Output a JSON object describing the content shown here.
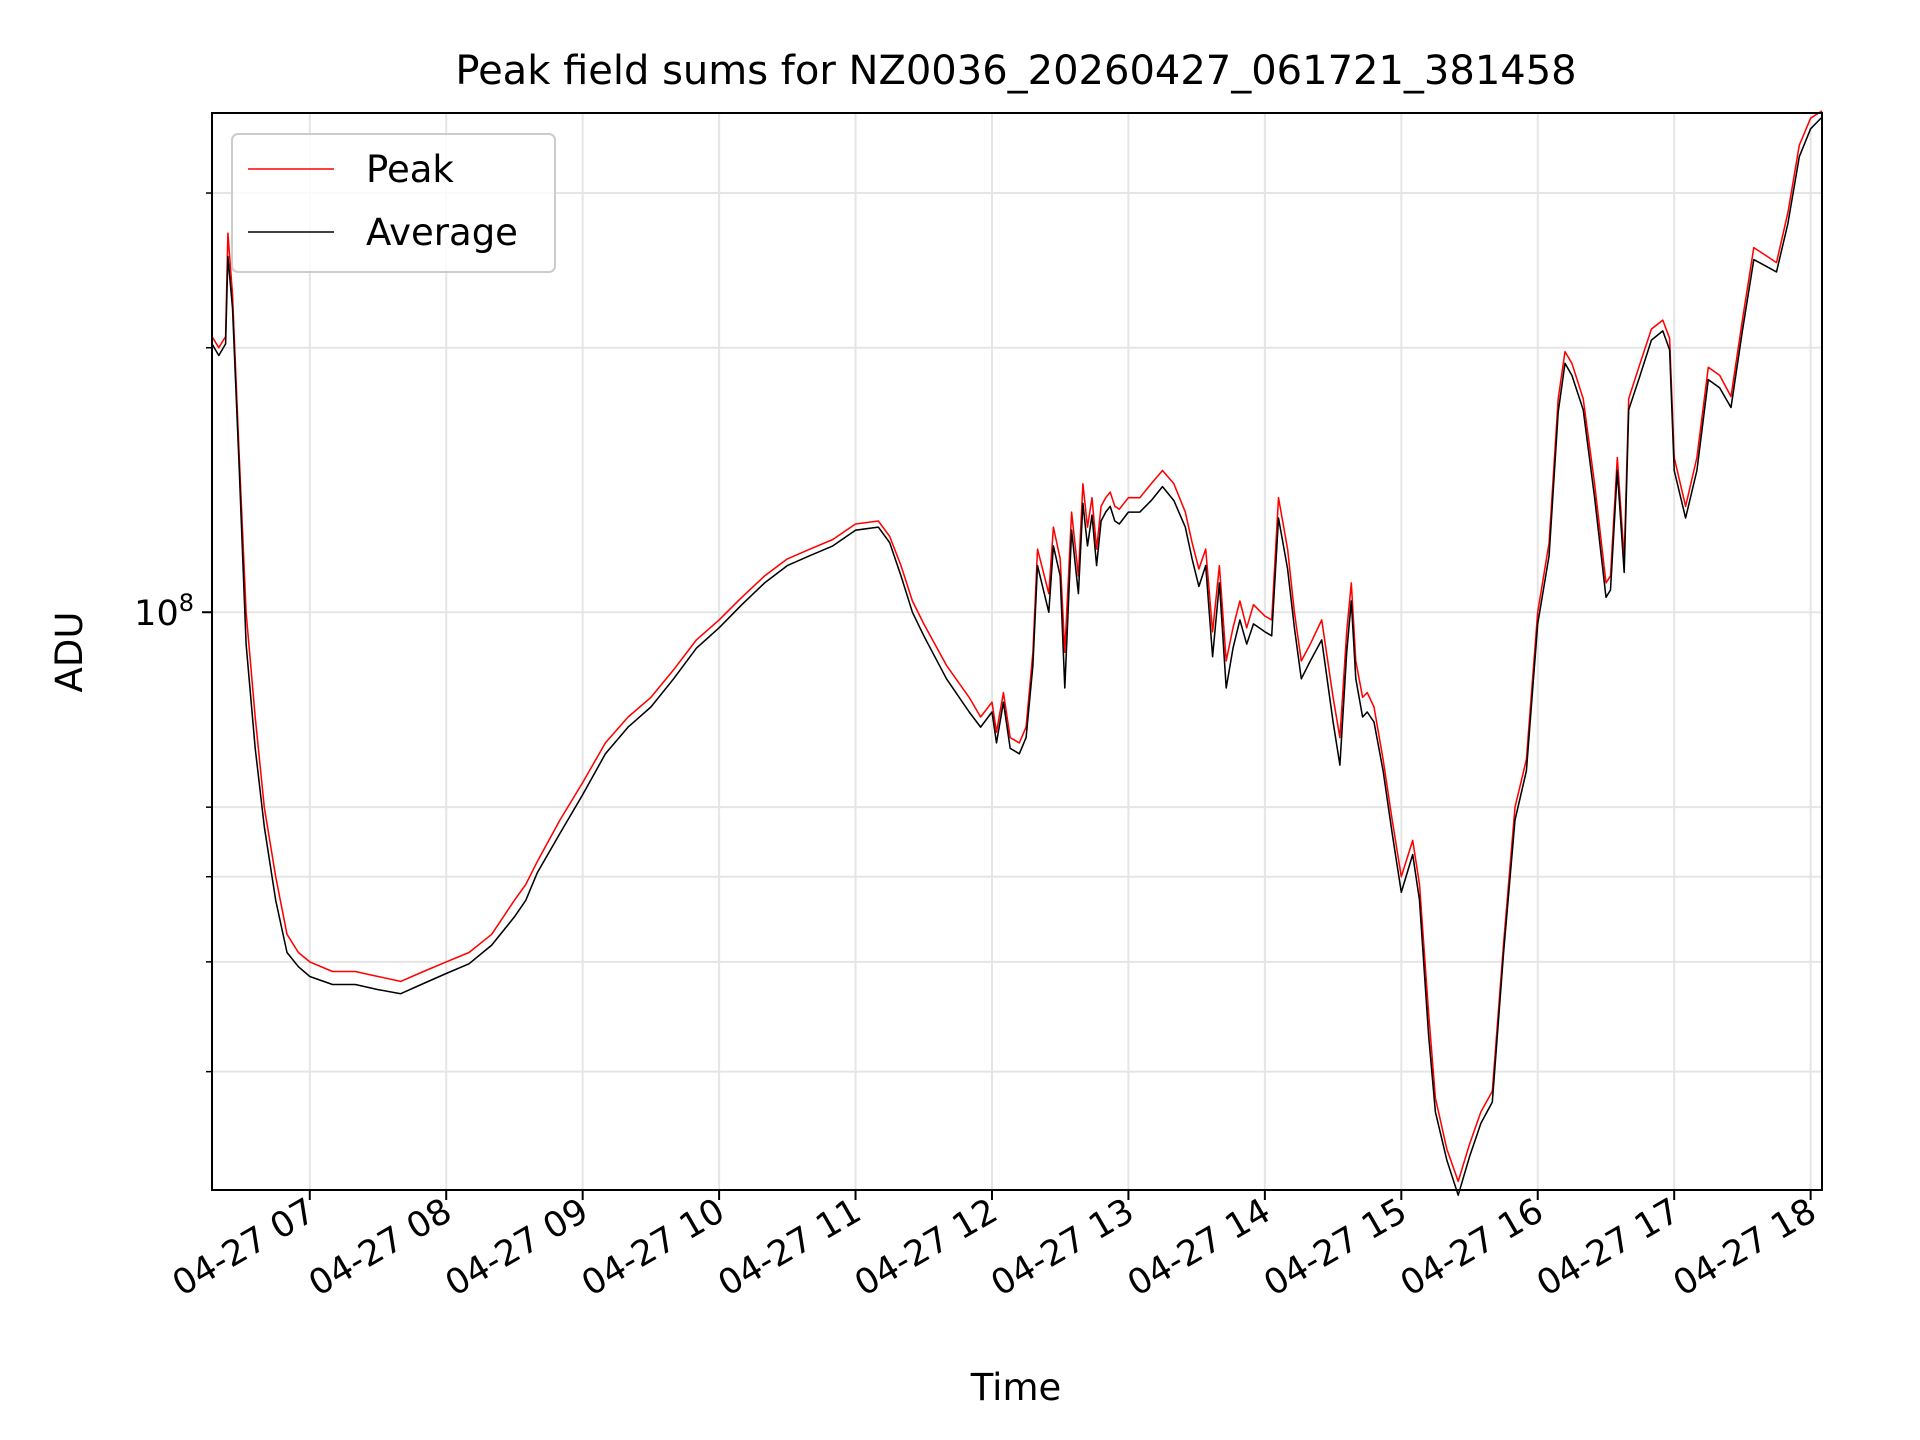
{
  "chart_data": {
    "type": "line",
    "title": "Peak field sums for NZ0036_20260427_061721_381458",
    "xlabel": "Time",
    "ylabel": "ADU",
    "y_scale": "log",
    "grid": true,
    "legend_position": "top-left",
    "xlim": [
      "2026-04-27 06:17",
      "2026-04-27 18:05"
    ],
    "ylim": [
      22000000,
      370000000
    ],
    "x_ticks": [
      {
        "t": "2026-04-27 07:00",
        "label": "04-27 07"
      },
      {
        "t": "2026-04-27 08:00",
        "label": "04-27 08"
      },
      {
        "t": "2026-04-27 09:00",
        "label": "04-27 09"
      },
      {
        "t": "2026-04-27 10:00",
        "label": "04-27 10"
      },
      {
        "t": "2026-04-27 11:00",
        "label": "04-27 11"
      },
      {
        "t": "2026-04-27 12:00",
        "label": "04-27 12"
      },
      {
        "t": "2026-04-27 13:00",
        "label": "04-27 13"
      },
      {
        "t": "2026-04-27 14:00",
        "label": "04-27 14"
      },
      {
        "t": "2026-04-27 15:00",
        "label": "04-27 15"
      },
      {
        "t": "2026-04-27 16:00",
        "label": "04-27 16"
      },
      {
        "t": "2026-04-27 17:00",
        "label": "04-27 17"
      },
      {
        "t": "2026-04-27 18:00",
        "label": "04-27 18"
      }
    ],
    "y_major_ticks": [
      {
        "value": 100000000,
        "base": "10",
        "exp": "8"
      }
    ],
    "y_minor_ticks": [
      30000000,
      40000000,
      50000000,
      60000000,
      200000000,
      300000000
    ],
    "x": [
      "2026-04-27 06:17",
      "2026-04-27 06:20",
      "2026-04-27 06:23",
      "2026-04-27 06:24",
      "2026-04-27 06:26",
      "2026-04-27 06:29",
      "2026-04-27 06:32",
      "2026-04-27 06:36",
      "2026-04-27 06:40",
      "2026-04-27 06:45",
      "2026-04-27 06:50",
      "2026-04-27 06:55",
      "2026-04-27 07:00",
      "2026-04-27 07:10",
      "2026-04-27 07:20",
      "2026-04-27 07:30",
      "2026-04-27 07:40",
      "2026-04-27 07:50",
      "2026-04-27 08:00",
      "2026-04-27 08:10",
      "2026-04-27 08:20",
      "2026-04-27 08:30",
      "2026-04-27 08:35",
      "2026-04-27 08:40",
      "2026-04-27 08:50",
      "2026-04-27 09:00",
      "2026-04-27 09:10",
      "2026-04-27 09:20",
      "2026-04-27 09:30",
      "2026-04-27 09:40",
      "2026-04-27 09:50",
      "2026-04-27 10:00",
      "2026-04-27 10:10",
      "2026-04-27 10:20",
      "2026-04-27 10:30",
      "2026-04-27 10:40",
      "2026-04-27 10:50",
      "2026-04-27 11:00",
      "2026-04-27 11:10",
      "2026-04-27 11:15",
      "2026-04-27 11:20",
      "2026-04-27 11:25",
      "2026-04-27 11:30",
      "2026-04-27 11:40",
      "2026-04-27 11:50",
      "2026-04-27 11:55",
      "2026-04-27 12:00",
      "2026-04-27 12:02",
      "2026-04-27 12:05",
      "2026-04-27 12:08",
      "2026-04-27 12:12",
      "2026-04-27 12:15",
      "2026-04-27 12:18",
      "2026-04-27 12:20",
      "2026-04-27 12:25",
      "2026-04-27 12:27",
      "2026-04-27 12:30",
      "2026-04-27 12:32",
      "2026-04-27 12:35",
      "2026-04-27 12:38",
      "2026-04-27 12:40",
      "2026-04-27 12:42",
      "2026-04-27 12:44",
      "2026-04-27 12:46",
      "2026-04-27 12:48",
      "2026-04-27 12:50",
      "2026-04-27 12:52",
      "2026-04-27 12:54",
      "2026-04-27 12:56",
      "2026-04-27 13:00",
      "2026-04-27 13:05",
      "2026-04-27 13:10",
      "2026-04-27 13:15",
      "2026-04-27 13:20",
      "2026-04-27 13:25",
      "2026-04-27 13:28",
      "2026-04-27 13:31",
      "2026-04-27 13:34",
      "2026-04-27 13:37",
      "2026-04-27 13:40",
      "2026-04-27 13:43",
      "2026-04-27 13:46",
      "2026-04-27 13:49",
      "2026-04-27 13:52",
      "2026-04-27 13:55",
      "2026-04-27 14:00",
      "2026-04-27 14:03",
      "2026-04-27 14:06",
      "2026-04-27 14:10",
      "2026-04-27 14:13",
      "2026-04-27 14:16",
      "2026-04-27 14:20",
      "2026-04-27 14:25",
      "2026-04-27 14:30",
      "2026-04-27 14:33",
      "2026-04-27 14:36",
      "2026-04-27 14:38",
      "2026-04-27 14:40",
      "2026-04-27 14:43",
      "2026-04-27 14:45",
      "2026-04-27 14:48",
      "2026-04-27 14:52",
      "2026-04-27 14:56",
      "2026-04-27 15:00",
      "2026-04-27 15:05",
      "2026-04-27 15:08",
      "2026-04-27 15:12",
      "2026-04-27 15:15",
      "2026-04-27 15:20",
      "2026-04-27 15:25",
      "2026-04-27 15:30",
      "2026-04-27 15:35",
      "2026-04-27 15:40",
      "2026-04-27 15:45",
      "2026-04-27 15:50",
      "2026-04-27 15:55",
      "2026-04-27 16:00",
      "2026-04-27 16:05",
      "2026-04-27 16:09",
      "2026-04-27 16:12",
      "2026-04-27 16:15",
      "2026-04-27 16:20",
      "2026-04-27 16:25",
      "2026-04-27 16:30",
      "2026-04-27 16:32",
      "2026-04-27 16:35",
      "2026-04-27 16:38",
      "2026-04-27 16:40",
      "2026-04-27 16:45",
      "2026-04-27 16:50",
      "2026-04-27 16:55",
      "2026-04-27 16:58",
      "2026-04-27 17:00",
      "2026-04-27 17:05",
      "2026-04-27 17:10",
      "2026-04-27 17:15",
      "2026-04-27 17:20",
      "2026-04-27 17:25",
      "2026-04-27 17:30",
      "2026-04-27 17:35",
      "2026-04-27 17:40",
      "2026-04-27 17:45",
      "2026-04-27 17:50",
      "2026-04-27 17:55",
      "2026-04-27 18:00",
      "2026-04-27 18:05"
    ],
    "series": [
      {
        "name": "Peak",
        "color": "#ff0000",
        "line_width": 0.7,
        "values": [
          206000000,
          200000000,
          206000000,
          270000000,
          230000000,
          150000000,
          100000000,
          76000000,
          60000000,
          50000000,
          43000000,
          41000000,
          40000000,
          39000000,
          39000000,
          38500000,
          38000000,
          39000000,
          40000000,
          41000000,
          43000000,
          47000000,
          49000000,
          52000000,
          58000000,
          64000000,
          71000000,
          76000000,
          80000000,
          86000000,
          93000000,
          98000000,
          104000000,
          110000000,
          115000000,
          118000000,
          121000000,
          126000000,
          127000000,
          122000000,
          113000000,
          103000000,
          97000000,
          87000000,
          80000000,
          76000000,
          79000000,
          73000000,
          81000000,
          72000000,
          71000000,
          74000000,
          90000000,
          118000000,
          105000000,
          125000000,
          115000000,
          90000000,
          130000000,
          110000000,
          140000000,
          125000000,
          135000000,
          118000000,
          132000000,
          135000000,
          137000000,
          132000000,
          131000000,
          135000000,
          135000000,
          140000000,
          145000000,
          140000000,
          130000000,
          120000000,
          112000000,
          118000000,
          95000000,
          113000000,
          88000000,
          96000000,
          103000000,
          96000000,
          102000000,
          99000000,
          98000000,
          135000000,
          118000000,
          100000000,
          88000000,
          92000000,
          98000000,
          80000000,
          72000000,
          95000000,
          108000000,
          88000000,
          80000000,
          81000000,
          78000000,
          68000000,
          58000000,
          50000000,
          55000000,
          49000000,
          35000000,
          28000000,
          24500000,
          22500000,
          24800000,
          27000000,
          28500000,
          42000000,
          60000000,
          68000000,
          100000000,
          120000000,
          175000000,
          198000000,
          192000000,
          175000000,
          140000000,
          108000000,
          110000000,
          150000000,
          115000000,
          175000000,
          192000000,
          210000000,
          215000000,
          205000000,
          150000000,
          132000000,
          150000000,
          190000000,
          186000000,
          176000000,
          215000000,
          260000000,
          255000000,
          250000000,
          285000000,
          340000000,
          365000000,
          372000000
        ]
      },
      {
        "name": "Average",
        "color": "#000000",
        "line_width": 0.7,
        "values": [
          202000000,
          196000000,
          202000000,
          254000000,
          222000000,
          145000000,
          92000000,
          70000000,
          57000000,
          47000000,
          41000000,
          39500000,
          38500000,
          37700000,
          37700000,
          37200000,
          36800000,
          37800000,
          38800000,
          39800000,
          41800000,
          45000000,
          47000000,
          50500000,
          56000000,
          62000000,
          69000000,
          74000000,
          78000000,
          84000000,
          91000000,
          96000000,
          102000000,
          108000000,
          113000000,
          116000000,
          119000000,
          124000000,
          125000000,
          120000000,
          110000000,
          100000000,
          94000000,
          84000000,
          77000000,
          74000000,
          77000000,
          71000000,
          79000000,
          70000000,
          69000000,
          72000000,
          87000000,
          113000000,
          100000000,
          119000000,
          110000000,
          82000000,
          124000000,
          105000000,
          133000000,
          119000000,
          129000000,
          113000000,
          127000000,
          130000000,
          132000000,
          127000000,
          126000000,
          130000000,
          130000000,
          134000000,
          139000000,
          134000000,
          125000000,
          115000000,
          107000000,
          113000000,
          89000000,
          108000000,
          82000000,
          91000000,
          98000000,
          92000000,
          97000000,
          95000000,
          94000000,
          128000000,
          112000000,
          96000000,
          84000000,
          88000000,
          93000000,
          75000000,
          67000000,
          90000000,
          103000000,
          84000000,
          76000000,
          77000000,
          75000000,
          66000000,
          56000000,
          48000000,
          53000000,
          47000000,
          33000000,
          27000000,
          23800000,
          21700000,
          24000000,
          26200000,
          27700000,
          41000000,
          58000000,
          66000000,
          97000000,
          116000000,
          169000000,
          192000000,
          186000000,
          170000000,
          135000000,
          104000000,
          106000000,
          145000000,
          111000000,
          170000000,
          186000000,
          204000000,
          209000000,
          199000000,
          145000000,
          128000000,
          145000000,
          184000000,
          180000000,
          171000000,
          209000000,
          252000000,
          248000000,
          244000000,
          277000000,
          330000000,
          355000000,
          366000000
        ]
      }
    ]
  }
}
